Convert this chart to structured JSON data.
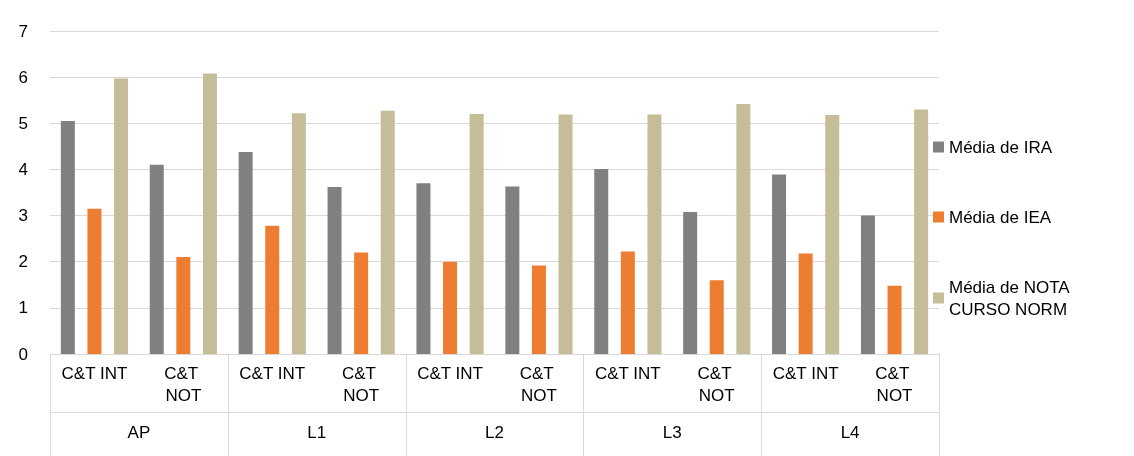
{
  "chart_data": {
    "type": "bar",
    "categories": [
      "C&T INT",
      "C&T NOT",
      "C&T INT",
      "C&T NOT",
      "C&T INT",
      "C&T NOT",
      "C&T INT",
      "C&T NOT",
      "C&T INT",
      "C&T NOT"
    ],
    "annotations": [
      "AP",
      "L1",
      "L2",
      "L3",
      "L4"
    ],
    "series": [
      {
        "name": "Média de IRA",
        "color": "#808080",
        "values": [
          5.05,
          4.1,
          4.38,
          3.62,
          3.7,
          3.63,
          4.01,
          3.08,
          3.89,
          3.0
        ]
      },
      {
        "name": "Média de IEA",
        "color": "#ed7d31",
        "values": [
          3.15,
          2.1,
          2.78,
          2.2,
          2.0,
          1.92,
          2.22,
          1.6,
          2.18,
          1.48
        ]
      },
      {
        "name": "Média de NOTA CURSO NORM",
        "color": "#c4bd97",
        "values": [
          5.97,
          6.08,
          5.22,
          5.27,
          5.2,
          5.19,
          5.19,
          5.42,
          5.18,
          5.3
        ]
      }
    ],
    "ylim": [
      0,
      7
    ],
    "yticks": [
      0,
      1,
      2,
      3,
      4,
      5,
      6,
      7
    ],
    "grid": "y",
    "legend": "right"
  }
}
